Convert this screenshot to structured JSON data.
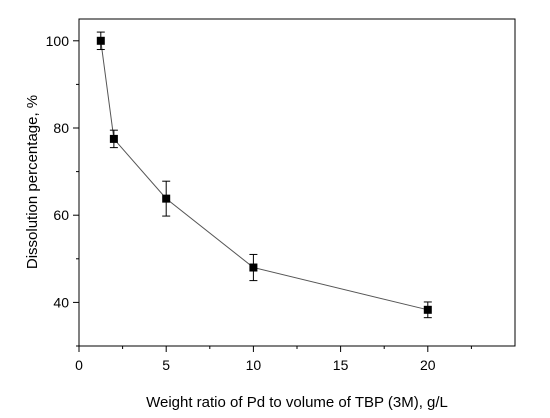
{
  "chart_data": {
    "type": "line",
    "title": "",
    "xlabel": "Weight  ratio of Pd to volume of TBP (3M), g/L",
    "ylabel": "Dissolution percentage, %",
    "xlim": [
      0,
      25
    ],
    "ylim": [
      30,
      105
    ],
    "x_ticks": [
      0,
      5,
      10,
      15,
      20
    ],
    "x_tick_labels": [
      "0",
      "5",
      "10",
      "15",
      "20"
    ],
    "y_ticks": [
      40,
      60,
      80,
      100
    ],
    "y_tick_labels": [
      "40",
      "60",
      "80",
      "100"
    ],
    "grid": false,
    "legend": "none",
    "series": [
      {
        "marker": "square",
        "color": "#000000",
        "line_color": "#555555",
        "points": [
          {
            "x": 1.25,
            "y": 100.0,
            "err": 2.0
          },
          {
            "x": 2.0,
            "y": 77.5,
            "err": 2.0
          },
          {
            "x": 5.0,
            "y": 63.8,
            "err": 4.0
          },
          {
            "x": 10.0,
            "y": 48.0,
            "err": 3.0
          },
          {
            "x": 20.0,
            "y": 38.3,
            "err": 1.8
          }
        ]
      }
    ]
  }
}
